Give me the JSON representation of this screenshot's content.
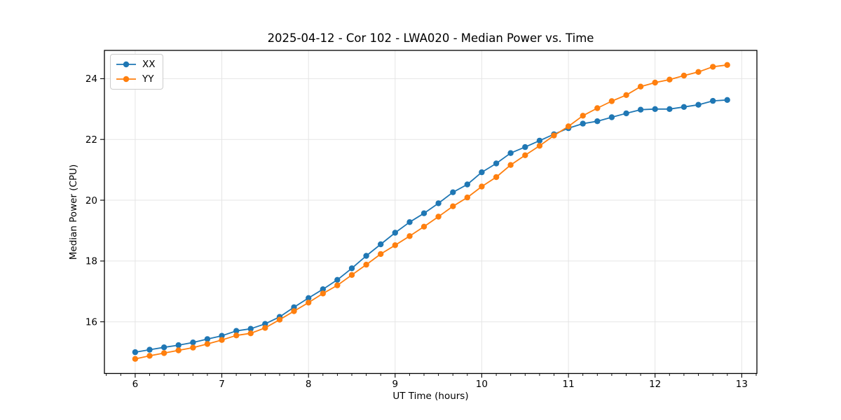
{
  "chart_data": {
    "type": "line",
    "title": "2025-04-12 - Cor 102 - LWA020 - Median Power vs. Time",
    "xlabel": "UT Time (hours)",
    "ylabel": "Median Power (CPU)",
    "xlim": [
      5.645,
      13.175
    ],
    "ylim": [
      14.3,
      24.93
    ],
    "x_ticks": [
      6,
      7,
      8,
      9,
      10,
      11,
      12,
      13
    ],
    "y_ticks": [
      16,
      18,
      20,
      22,
      24
    ],
    "x_minor_step": 0.166667,
    "grid": true,
    "legend_position": "upper-left",
    "x": [
      6.0,
      6.167,
      6.333,
      6.5,
      6.667,
      6.833,
      7.0,
      7.167,
      7.333,
      7.5,
      7.667,
      7.833,
      8.0,
      8.167,
      8.333,
      8.5,
      8.667,
      8.833,
      9.0,
      9.167,
      9.333,
      9.5,
      9.667,
      9.833,
      10.0,
      10.167,
      10.333,
      10.5,
      10.667,
      10.833,
      11.0,
      11.167,
      11.333,
      11.5,
      11.667,
      11.833,
      12.0,
      12.167,
      12.333,
      12.5,
      12.667,
      12.833
    ],
    "series": [
      {
        "name": "XX",
        "color": "#1f77b4",
        "values": [
          15.0,
          15.08,
          15.16,
          15.23,
          15.32,
          15.43,
          15.54,
          15.7,
          15.77,
          15.93,
          16.16,
          16.48,
          16.78,
          17.07,
          17.38,
          17.76,
          18.17,
          18.55,
          18.93,
          19.28,
          19.57,
          19.9,
          20.26,
          20.52,
          20.92,
          21.21,
          21.55,
          21.75,
          21.96,
          22.17,
          22.37,
          22.52,
          22.6,
          22.73,
          22.86,
          22.98,
          23.0,
          23.0,
          23.07,
          23.14,
          23.27,
          23.3
        ]
      },
      {
        "name": "YY",
        "color": "#ff7f0e",
        "values": [
          14.78,
          14.88,
          14.97,
          15.06,
          15.15,
          15.27,
          15.4,
          15.55,
          15.62,
          15.8,
          16.07,
          16.35,
          16.63,
          16.93,
          17.2,
          17.54,
          17.88,
          18.23,
          18.52,
          18.82,
          19.13,
          19.46,
          19.8,
          20.09,
          20.45,
          20.76,
          21.16,
          21.48,
          21.79,
          22.13,
          22.43,
          22.78,
          23.03,
          23.26,
          23.46,
          23.74,
          23.87,
          23.97,
          24.1,
          24.22,
          24.39,
          24.45
        ]
      }
    ],
    "style": {
      "grid_color": "#e5e5e5",
      "spine_color": "#000000",
      "marker_radius": 4.2,
      "line_width": 1.8
    }
  }
}
